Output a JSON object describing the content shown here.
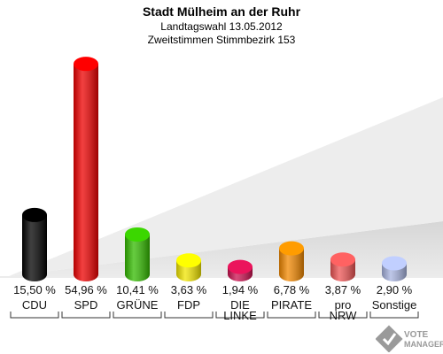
{
  "header": {
    "title": "Stadt Mülheim an der Ruhr",
    "subtitle1": "Landtagswahl 13.05.2012",
    "subtitle2": "Zweitstimmen Stimmbezirk 153"
  },
  "logo": {
    "line1": "VOTE",
    "line2": "MANAGER"
  },
  "chart_data": {
    "type": "bar",
    "title": "Stadt Mülheim an der Ruhr",
    "subtitle": "Landtagswahl 13.05.2012 / Zweitstimmen Stimmbezirk 153",
    "categories": [
      "CDU",
      "SPD",
      "GRÜNE",
      "FDP",
      "DIE LINKE",
      "PIRATE",
      "pro NRW",
      "Sonstige"
    ],
    "category_lines": [
      [
        "CDU"
      ],
      [
        "SPD"
      ],
      [
        "GRÜNE"
      ],
      [
        "FDP"
      ],
      [
        "DIE",
        "LINKE"
      ],
      [
        "PIRATE"
      ],
      [
        "pro",
        "NRW"
      ],
      [
        "Sonstige"
      ]
    ],
    "values": [
      15.5,
      54.96,
      10.41,
      3.63,
      1.94,
      6.78,
      3.87,
      2.9
    ],
    "value_labels": [
      "15,50 %",
      "54,96 %",
      "10,41 %",
      "3,63 %",
      "1,94 %",
      "6,78 %",
      "3,87 %",
      "2,90 %"
    ],
    "colors": [
      "#000000",
      "#ee0000",
      "#33bb00",
      "#f2e600",
      "#cc1150",
      "#f28800",
      "#ee5555",
      "#a8b4e0"
    ],
    "ylim": [
      0,
      55
    ],
    "grid": false,
    "legend": "none"
  }
}
